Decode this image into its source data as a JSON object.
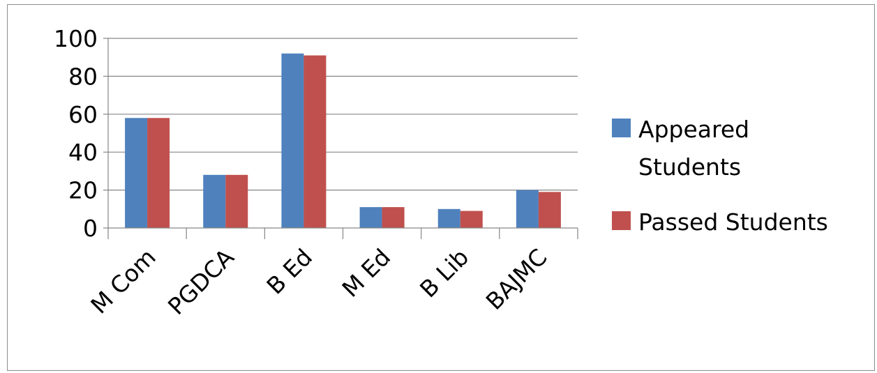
{
  "chart_data": {
    "type": "bar",
    "categories": [
      "M Com",
      "PGDCA",
      "B Ed",
      "M Ed",
      "B Lib",
      "BAJMC"
    ],
    "series": [
      {
        "name": "Appeared Students",
        "legend_lines": [
          "Appeared",
          "Students"
        ],
        "color": "#4f81bd",
        "values": [
          58,
          28,
          92,
          11,
          10,
          20
        ]
      },
      {
        "name": "Passed Students",
        "legend_lines": [
          "Passed Students"
        ],
        "color": "#c0504d",
        "values": [
          58,
          28,
          91,
          11,
          9,
          19
        ]
      }
    ],
    "yticks": [
      "0",
      "20",
      "40",
      "60",
      "80",
      "100"
    ],
    "ylim": [
      0,
      100
    ],
    "grid": true,
    "legend_position": "right"
  }
}
